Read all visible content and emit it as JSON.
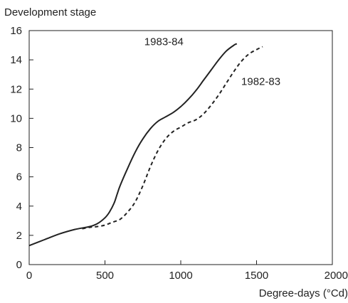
{
  "chart_data": {
    "type": "line",
    "title": "",
    "ylabel": "Development stage",
    "xlabel": "Degree-days (°Cd)",
    "xlim": [
      0,
      2000
    ],
    "ylim": [
      0,
      16
    ],
    "xticks": [
      0,
      500,
      1000,
      1500,
      2000
    ],
    "yticks": [
      0,
      2,
      4,
      6,
      8,
      10,
      12,
      14,
      16
    ],
    "grid": false,
    "legend": "none",
    "series": [
      {
        "name": "1983-84",
        "style": "solid",
        "color": "#222222",
        "x": [
          0,
          100,
          200,
          300,
          400,
          450,
          500,
          530,
          560,
          580,
          600,
          650,
          700,
          750,
          800,
          850,
          900,
          950,
          1000,
          1050,
          1100,
          1150,
          1200,
          1250,
          1300,
          1350,
          1370
        ],
        "y": [
          1.3,
          1.7,
          2.1,
          2.4,
          2.6,
          2.8,
          3.2,
          3.6,
          4.2,
          4.8,
          5.4,
          6.6,
          7.7,
          8.6,
          9.3,
          9.8,
          10.1,
          10.4,
          10.8,
          11.3,
          11.9,
          12.6,
          13.3,
          14.0,
          14.6,
          15.0,
          15.1
        ]
      },
      {
        "name": "1982-83",
        "style": "dashed",
        "color": "#222222",
        "x": [
          350,
          400,
          450,
          500,
          550,
          600,
          650,
          700,
          750,
          800,
          850,
          900,
          950,
          1000,
          1050,
          1100,
          1150,
          1200,
          1250,
          1300,
          1350,
          1400,
          1450,
          1500,
          1540
        ],
        "y": [
          2.45,
          2.55,
          2.6,
          2.7,
          2.9,
          3.1,
          3.6,
          4.3,
          5.4,
          6.7,
          7.8,
          8.6,
          9.1,
          9.4,
          9.7,
          9.9,
          10.3,
          10.9,
          11.6,
          12.4,
          13.2,
          13.9,
          14.4,
          14.7,
          14.9
        ]
      }
    ]
  }
}
